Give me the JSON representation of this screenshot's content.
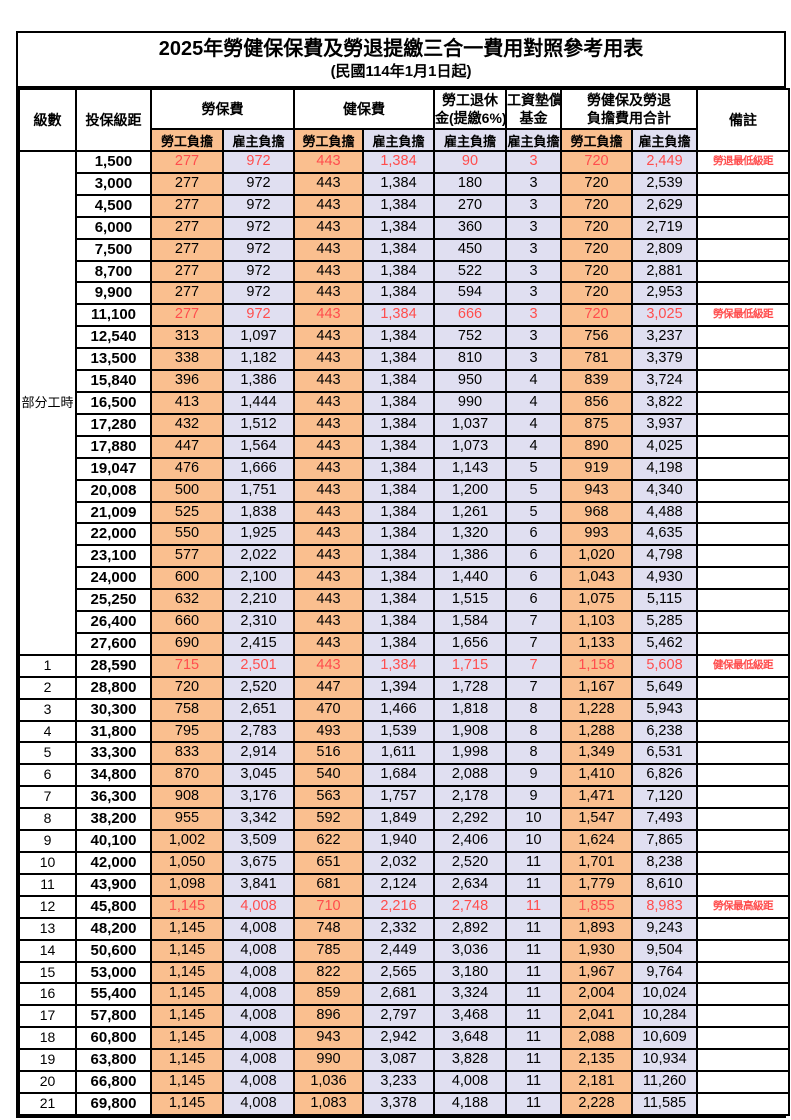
{
  "title": "2025年勞健保保費及勞退提繳三合一費用對照參考用表",
  "subtitle": "(民國114年1月1日起)",
  "colors": {
    "employee_bg": "#FABF8F",
    "employer_bg": "#E0DFF1",
    "highlight_red": "#FF4D4D"
  },
  "header": {
    "level": "級數",
    "bracket": "投保級距",
    "labor_insurance": "勞保費",
    "health_insurance": "健保費",
    "pension_line1": "勞工退休",
    "pension_line2": "金(提繳6%)",
    "wage_fund_line1": "工資墊償",
    "wage_fund_line2": "基金",
    "total_line1": "勞健保及勞退",
    "total_line2": "負擔費用合計",
    "remark": "備註",
    "employee": "勞工負擔",
    "employer": "雇主負擔"
  },
  "table": {
    "part_time_label": "部分工時",
    "part_time_rowspan": 23,
    "value_classes": [
      "c-emp",
      "c-er",
      "c-emp",
      "c-er",
      "c-er",
      "c-er",
      "c-emp",
      "c-er"
    ],
    "rows": [
      {
        "level": "",
        "bracket": "1,500",
        "values": [
          "277",
          "972",
          "443",
          "1,384",
          "90",
          "3",
          "720",
          "2,449"
        ],
        "remark": "勞退最低級距",
        "red": true
      },
      {
        "level": "",
        "bracket": "3,000",
        "values": [
          "277",
          "972",
          "443",
          "1,384",
          "180",
          "3",
          "720",
          "2,539"
        ],
        "remark": "",
        "red": false
      },
      {
        "level": "",
        "bracket": "4,500",
        "values": [
          "277",
          "972",
          "443",
          "1,384",
          "270",
          "3",
          "720",
          "2,629"
        ],
        "remark": "",
        "red": false
      },
      {
        "level": "",
        "bracket": "6,000",
        "values": [
          "277",
          "972",
          "443",
          "1,384",
          "360",
          "3",
          "720",
          "2,719"
        ],
        "remark": "",
        "red": false
      },
      {
        "level": "",
        "bracket": "7,500",
        "values": [
          "277",
          "972",
          "443",
          "1,384",
          "450",
          "3",
          "720",
          "2,809"
        ],
        "remark": "",
        "red": false
      },
      {
        "level": "",
        "bracket": "8,700",
        "values": [
          "277",
          "972",
          "443",
          "1,384",
          "522",
          "3",
          "720",
          "2,881"
        ],
        "remark": "",
        "red": false
      },
      {
        "level": "",
        "bracket": "9,900",
        "values": [
          "277",
          "972",
          "443",
          "1,384",
          "594",
          "3",
          "720",
          "2,953"
        ],
        "remark": "",
        "red": false
      },
      {
        "level": "",
        "bracket": "11,100",
        "values": [
          "277",
          "972",
          "443",
          "1,384",
          "666",
          "3",
          "720",
          "3,025"
        ],
        "remark": "勞保最低級距",
        "red": true
      },
      {
        "level": "",
        "bracket": "12,540",
        "values": [
          "313",
          "1,097",
          "443",
          "1,384",
          "752",
          "3",
          "756",
          "3,237"
        ],
        "remark": "",
        "red": false
      },
      {
        "level": "",
        "bracket": "13,500",
        "values": [
          "338",
          "1,182",
          "443",
          "1,384",
          "810",
          "3",
          "781",
          "3,379"
        ],
        "remark": "",
        "red": false
      },
      {
        "level": "",
        "bracket": "15,840",
        "values": [
          "396",
          "1,386",
          "443",
          "1,384",
          "950",
          "4",
          "839",
          "3,724"
        ],
        "remark": "",
        "red": false
      },
      {
        "level": "",
        "bracket": "16,500",
        "values": [
          "413",
          "1,444",
          "443",
          "1,384",
          "990",
          "4",
          "856",
          "3,822"
        ],
        "remark": "",
        "red": false
      },
      {
        "level": "",
        "bracket": "17,280",
        "values": [
          "432",
          "1,512",
          "443",
          "1,384",
          "1,037",
          "4",
          "875",
          "3,937"
        ],
        "remark": "",
        "red": false
      },
      {
        "level": "",
        "bracket": "17,880",
        "values": [
          "447",
          "1,564",
          "443",
          "1,384",
          "1,073",
          "4",
          "890",
          "4,025"
        ],
        "remark": "",
        "red": false
      },
      {
        "level": "",
        "bracket": "19,047",
        "values": [
          "476",
          "1,666",
          "443",
          "1,384",
          "1,143",
          "5",
          "919",
          "4,198"
        ],
        "remark": "",
        "red": false
      },
      {
        "level": "",
        "bracket": "20,008",
        "values": [
          "500",
          "1,751",
          "443",
          "1,384",
          "1,200",
          "5",
          "943",
          "4,340"
        ],
        "remark": "",
        "red": false
      },
      {
        "level": "",
        "bracket": "21,009",
        "values": [
          "525",
          "1,838",
          "443",
          "1,384",
          "1,261",
          "5",
          "968",
          "4,488"
        ],
        "remark": "",
        "red": false
      },
      {
        "level": "",
        "bracket": "22,000",
        "values": [
          "550",
          "1,925",
          "443",
          "1,384",
          "1,320",
          "6",
          "993",
          "4,635"
        ],
        "remark": "",
        "red": false
      },
      {
        "level": "",
        "bracket": "23,100",
        "values": [
          "577",
          "2,022",
          "443",
          "1,384",
          "1,386",
          "6",
          "1,020",
          "4,798"
        ],
        "remark": "",
        "red": false
      },
      {
        "level": "",
        "bracket": "24,000",
        "values": [
          "600",
          "2,100",
          "443",
          "1,384",
          "1,440",
          "6",
          "1,043",
          "4,930"
        ],
        "remark": "",
        "red": false
      },
      {
        "level": "",
        "bracket": "25,250",
        "values": [
          "632",
          "2,210",
          "443",
          "1,384",
          "1,515",
          "6",
          "1,075",
          "5,115"
        ],
        "remark": "",
        "red": false
      },
      {
        "level": "",
        "bracket": "26,400",
        "values": [
          "660",
          "2,310",
          "443",
          "1,384",
          "1,584",
          "7",
          "1,103",
          "5,285"
        ],
        "remark": "",
        "red": false
      },
      {
        "level": "",
        "bracket": "27,600",
        "values": [
          "690",
          "2,415",
          "443",
          "1,384",
          "1,656",
          "7",
          "1,133",
          "5,462"
        ],
        "remark": "",
        "red": false
      },
      {
        "level": "1",
        "bracket": "28,590",
        "values": [
          "715",
          "2,501",
          "443",
          "1,384",
          "1,715",
          "7",
          "1,158",
          "5,608"
        ],
        "remark": "健保最低級距",
        "red": true
      },
      {
        "level": "2",
        "bracket": "28,800",
        "values": [
          "720",
          "2,520",
          "447",
          "1,394",
          "1,728",
          "7",
          "1,167",
          "5,649"
        ],
        "remark": "",
        "red": false
      },
      {
        "level": "3",
        "bracket": "30,300",
        "values": [
          "758",
          "2,651",
          "470",
          "1,466",
          "1,818",
          "8",
          "1,228",
          "5,943"
        ],
        "remark": "",
        "red": false
      },
      {
        "level": "4",
        "bracket": "31,800",
        "values": [
          "795",
          "2,783",
          "493",
          "1,539",
          "1,908",
          "8",
          "1,288",
          "6,238"
        ],
        "remark": "",
        "red": false
      },
      {
        "level": "5",
        "bracket": "33,300",
        "values": [
          "833",
          "2,914",
          "516",
          "1,611",
          "1,998",
          "8",
          "1,349",
          "6,531"
        ],
        "remark": "",
        "red": false
      },
      {
        "level": "6",
        "bracket": "34,800",
        "values": [
          "870",
          "3,045",
          "540",
          "1,684",
          "2,088",
          "9",
          "1,410",
          "6,826"
        ],
        "remark": "",
        "red": false
      },
      {
        "level": "7",
        "bracket": "36,300",
        "values": [
          "908",
          "3,176",
          "563",
          "1,757",
          "2,178",
          "9",
          "1,471",
          "7,120"
        ],
        "remark": "",
        "red": false
      },
      {
        "level": "8",
        "bracket": "38,200",
        "values": [
          "955",
          "3,342",
          "592",
          "1,849",
          "2,292",
          "10",
          "1,547",
          "7,493"
        ],
        "remark": "",
        "red": false
      },
      {
        "level": "9",
        "bracket": "40,100",
        "values": [
          "1,002",
          "3,509",
          "622",
          "1,940",
          "2,406",
          "10",
          "1,624",
          "7,865"
        ],
        "remark": "",
        "red": false
      },
      {
        "level": "10",
        "bracket": "42,000",
        "values": [
          "1,050",
          "3,675",
          "651",
          "2,032",
          "2,520",
          "11",
          "1,701",
          "8,238"
        ],
        "remark": "",
        "red": false
      },
      {
        "level": "11",
        "bracket": "43,900",
        "values": [
          "1,098",
          "3,841",
          "681",
          "2,124",
          "2,634",
          "11",
          "1,779",
          "8,610"
        ],
        "remark": "",
        "red": false
      },
      {
        "level": "12",
        "bracket": "45,800",
        "values": [
          "1,145",
          "4,008",
          "710",
          "2,216",
          "2,748",
          "11",
          "1,855",
          "8,983"
        ],
        "remark": "勞保最高級距",
        "red": true
      },
      {
        "level": "13",
        "bracket": "48,200",
        "values": [
          "1,145",
          "4,008",
          "748",
          "2,332",
          "2,892",
          "11",
          "1,893",
          "9,243"
        ],
        "remark": "",
        "red": false
      },
      {
        "level": "14",
        "bracket": "50,600",
        "values": [
          "1,145",
          "4,008",
          "785",
          "2,449",
          "3,036",
          "11",
          "1,930",
          "9,504"
        ],
        "remark": "",
        "red": false
      },
      {
        "level": "15",
        "bracket": "53,000",
        "values": [
          "1,145",
          "4,008",
          "822",
          "2,565",
          "3,180",
          "11",
          "1,967",
          "9,764"
        ],
        "remark": "",
        "red": false
      },
      {
        "level": "16",
        "bracket": "55,400",
        "values": [
          "1,145",
          "4,008",
          "859",
          "2,681",
          "3,324",
          "11",
          "2,004",
          "10,024"
        ],
        "remark": "",
        "red": false
      },
      {
        "level": "17",
        "bracket": "57,800",
        "values": [
          "1,145",
          "4,008",
          "896",
          "2,797",
          "3,468",
          "11",
          "2,041",
          "10,284"
        ],
        "remark": "",
        "red": false
      },
      {
        "level": "18",
        "bracket": "60,800",
        "values": [
          "1,145",
          "4,008",
          "943",
          "2,942",
          "3,648",
          "11",
          "2,088",
          "10,609"
        ],
        "remark": "",
        "red": false
      },
      {
        "level": "19",
        "bracket": "63,800",
        "values": [
          "1,145",
          "4,008",
          "990",
          "3,087",
          "3,828",
          "11",
          "2,135",
          "10,934"
        ],
        "remark": "",
        "red": false
      },
      {
        "level": "20",
        "bracket": "66,800",
        "values": [
          "1,145",
          "4,008",
          "1,036",
          "3,233",
          "4,008",
          "11",
          "2,181",
          "11,260"
        ],
        "remark": "",
        "red": false
      },
      {
        "level": "21",
        "bracket": "69,800",
        "values": [
          "1,145",
          "4,008",
          "1,083",
          "3,378",
          "4,188",
          "11",
          "2,228",
          "11,585"
        ],
        "remark": "",
        "red": false
      }
    ]
  }
}
